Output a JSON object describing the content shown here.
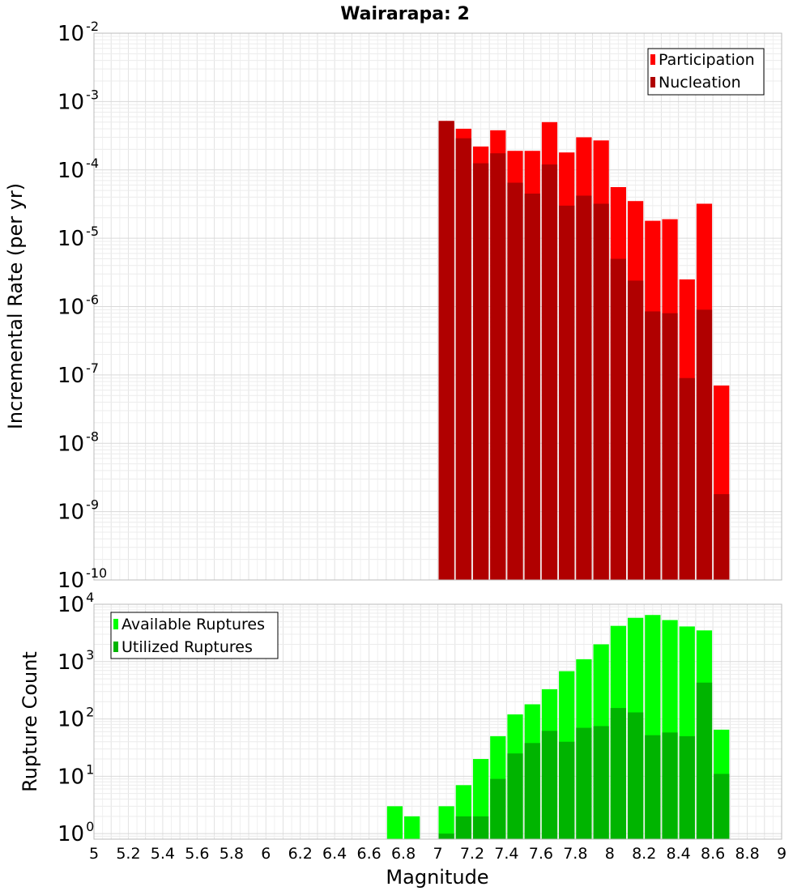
{
  "chart_data": [
    {
      "type": "bar",
      "title": "Wairarapa: 2",
      "xlabel": "",
      "ylabel": "Incremental Rate (per yr)",
      "scale_y": "log",
      "ylim": [
        1e-10,
        0.01
      ],
      "xlim": [
        5,
        9
      ],
      "bin_width": 0.1,
      "y_tick_exponents": [
        -10,
        -9,
        -8,
        -7,
        -6,
        -5,
        -4,
        -3,
        -2
      ],
      "legend_position": "top-right",
      "x": [
        7.05,
        7.15,
        7.25,
        7.35,
        7.45,
        7.55,
        7.65,
        7.75,
        7.85,
        7.95,
        8.05,
        8.15,
        8.25,
        8.35,
        8.45,
        8.55,
        8.65
      ],
      "series": [
        {
          "name": "Participation",
          "color": "#ff0000",
          "values": [
            0.00052,
            0.0004,
            0.00022,
            0.00038,
            0.00019,
            0.00019,
            0.0005,
            0.00018,
            0.0003,
            0.00027,
            5.6e-05,
            3.5e-05,
            1.8e-05,
            1.9e-05,
            2.5e-06,
            3.2e-05,
            7e-08
          ]
        },
        {
          "name": "Nucleation",
          "color": "#b00000",
          "values": [
            0.00052,
            0.00029,
            0.000125,
            0.000175,
            6.5e-05,
            4.5e-05,
            0.00012,
            3e-05,
            4.2e-05,
            3.2e-05,
            5e-06,
            2.4e-06,
            8.5e-07,
            8e-07,
            9e-08,
            9e-07,
            1.8e-09
          ]
        }
      ]
    },
    {
      "type": "bar",
      "title": "",
      "xlabel": "Magnitude",
      "ylabel": "Rupture Count",
      "scale_y": "log",
      "ylim": [
        0.8,
        10000
      ],
      "xlim": [
        5,
        9
      ],
      "bin_width": 0.1,
      "y_tick_exponents": [
        0,
        1,
        2,
        3,
        4
      ],
      "x_ticks": [
        "5",
        "5.2",
        "5.4",
        "5.6",
        "5.8",
        "6",
        "6.2",
        "6.4",
        "6.6",
        "6.8",
        "7",
        "7.2",
        "7.4",
        "7.6",
        "7.8",
        "8",
        "8.2",
        "8.4",
        "8.6",
        "8.8",
        "9"
      ],
      "legend_position": "top-left",
      "x": [
        6.75,
        6.85,
        7.05,
        7.15,
        7.25,
        7.35,
        7.45,
        7.55,
        7.65,
        7.75,
        7.85,
        7.95,
        8.05,
        8.15,
        8.25,
        8.35,
        8.45,
        8.55,
        8.65
      ],
      "series": [
        {
          "name": "Available Ruptures",
          "color": "#00ff00",
          "values": [
            3,
            2,
            3,
            7,
            20,
            50,
            120,
            180,
            330,
            680,
            1100,
            2000,
            4200,
            5800,
            6500,
            5300,
            4100,
            3500,
            65
          ]
        },
        {
          "name": "Utilized Ruptures",
          "color": "#00b400",
          "values": [
            0,
            0,
            1,
            2,
            2,
            9,
            25,
            38,
            62,
            40,
            70,
            75,
            155,
            130,
            52,
            58,
            50,
            430,
            11
          ]
        }
      ]
    }
  ]
}
